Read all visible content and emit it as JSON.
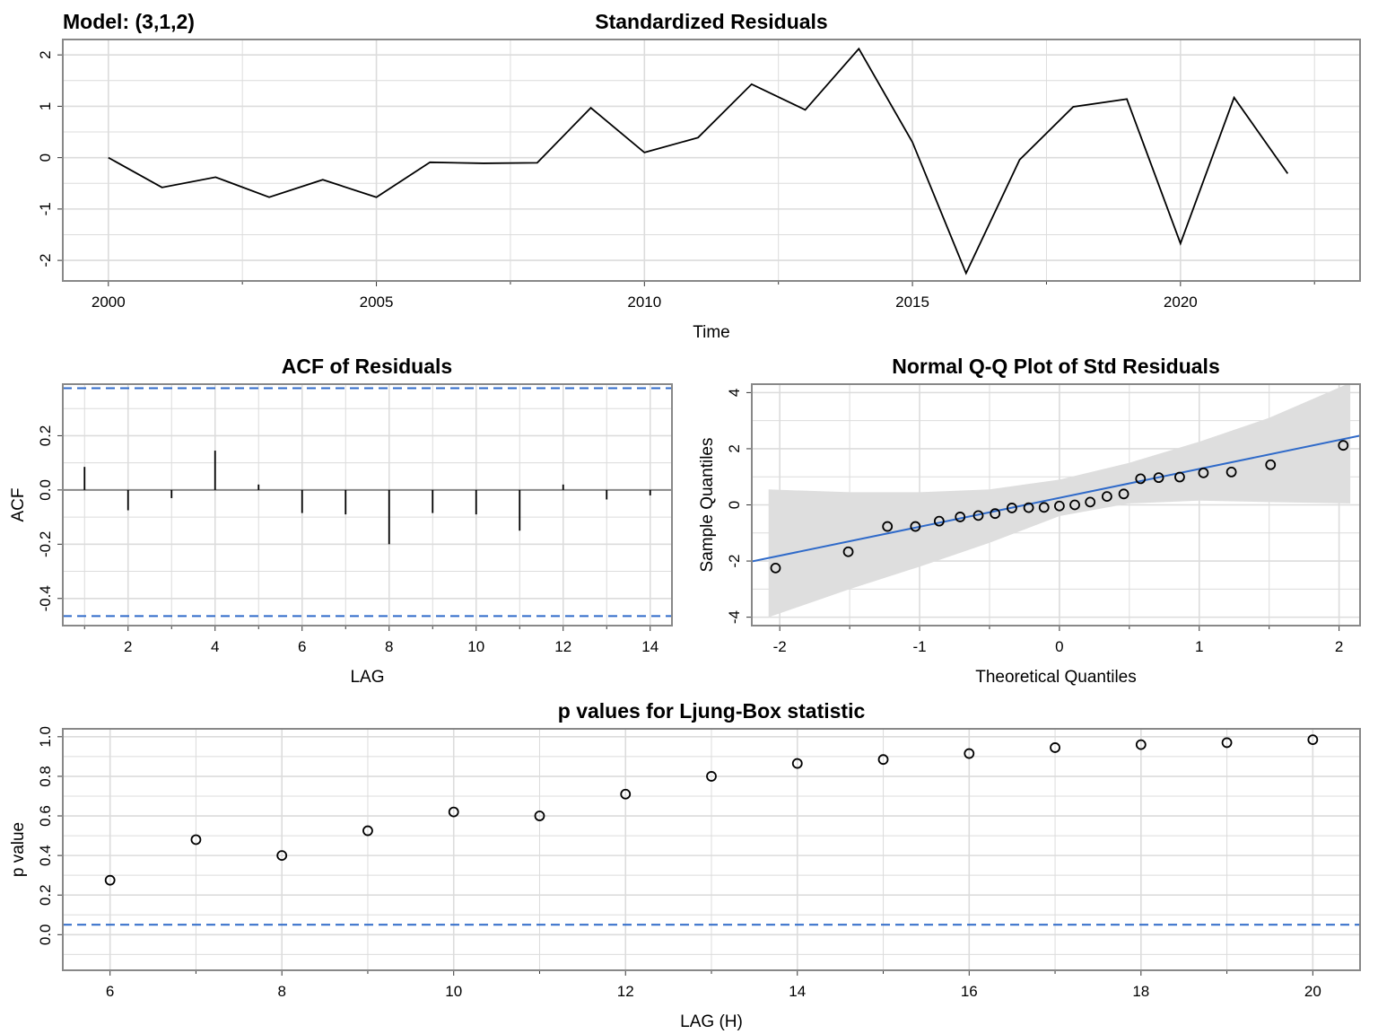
{
  "model_label": "Model: (3,1,2)",
  "chart_data": [
    {
      "id": "residuals",
      "type": "line",
      "title": "Standardized Residuals",
      "xlabel": "Time",
      "ylabel": "",
      "xlim": [
        1999.15,
        2023.35
      ],
      "ylim": [
        -2.4,
        2.3
      ],
      "xticks": [
        2000,
        2005,
        2010,
        2015,
        2020
      ],
      "yticks": [
        -2,
        -1,
        0,
        1,
        2
      ],
      "grid": true,
      "series": [
        {
          "x": [
            2000,
            2001,
            2002,
            2003,
            2004,
            2005,
            2006,
            2007,
            2008,
            2009,
            2010,
            2011,
            2012,
            2013,
            2014,
            2015,
            2016,
            2017,
            2018,
            2019,
            2020,
            2021,
            2022
          ],
          "y": [
            0.0,
            -0.58,
            -0.38,
            -0.77,
            -0.43,
            -0.77,
            -0.09,
            -0.11,
            -0.1,
            0.97,
            0.1,
            0.39,
            1.43,
            0.93,
            2.12,
            0.3,
            -2.25,
            -0.04,
            0.99,
            1.14,
            -1.67,
            1.17,
            -0.31
          ]
        }
      ]
    },
    {
      "id": "acf",
      "type": "bar",
      "title": "ACF of Residuals",
      "xlabel": "LAG",
      "ylabel": "ACF",
      "xlim": [
        0.5,
        14.5
      ],
      "ylim": [
        -0.5,
        0.39
      ],
      "xticks": [
        2,
        4,
        6,
        8,
        10,
        12,
        14
      ],
      "yticks": [
        -0.4,
        -0.2,
        0.0,
        0.2
      ],
      "ytick_labels": [
        "-0.4",
        "-0.2",
        "0.0",
        "0.2"
      ],
      "grid": true,
      "conf_band": [
        -0.465,
        0.375
      ],
      "series": [
        {
          "x": [
            1,
            2,
            3,
            4,
            5,
            6,
            7,
            8,
            9,
            10,
            11,
            12,
            13,
            14
          ],
          "y": [
            0.085,
            -0.075,
            -0.03,
            0.145,
            0.02,
            -0.085,
            -0.09,
            -0.2,
            -0.085,
            -0.09,
            -0.15,
            0.02,
            -0.035,
            -0.02
          ]
        }
      ]
    },
    {
      "id": "qq",
      "type": "scatter",
      "title": "Normal Q-Q Plot of Std Residuals",
      "xlabel": "Theoretical Quantiles",
      "ylabel": "Sample Quantiles",
      "xlim": [
        -2.2,
        2.15
      ],
      "ylim": [
        -4.3,
        4.3
      ],
      "xticks": [
        -2,
        -1,
        0,
        1,
        2
      ],
      "yticks": [
        -4,
        -2,
        0,
        2,
        4
      ],
      "grid": true,
      "ref_line": {
        "intercept": 0.25,
        "slope": 1.03
      },
      "band": {
        "x": [
          -2.08,
          -1.5,
          -1.0,
          -0.5,
          0.0,
          0.5,
          1.0,
          1.5,
          2.08
        ],
        "upper": [
          0.55,
          0.45,
          0.45,
          0.55,
          0.9,
          1.5,
          2.25,
          3.1,
          4.35
        ],
        "lower": [
          -4.0,
          -3.0,
          -2.2,
          -1.35,
          -0.4,
          0.05,
          0.15,
          0.1,
          0.05
        ]
      },
      "series": [
        {
          "x": [
            -2.03,
            -1.51,
            -1.23,
            -1.03,
            -0.86,
            -0.71,
            -0.58,
            -0.46,
            -0.34,
            -0.22,
            -0.11,
            0.0,
            0.11,
            0.22,
            0.34,
            0.46,
            0.58,
            0.71,
            0.86,
            1.03,
            1.23,
            1.51,
            2.03
          ],
          "y": [
            -2.25,
            -1.67,
            -0.77,
            -0.77,
            -0.58,
            -0.43,
            -0.38,
            -0.31,
            -0.11,
            -0.1,
            -0.09,
            -0.04,
            0.0,
            0.1,
            0.3,
            0.39,
            0.93,
            0.97,
            0.99,
            1.14,
            1.17,
            1.43,
            2.12
          ]
        }
      ]
    },
    {
      "id": "ljungbox",
      "type": "scatter",
      "title": "p values for Ljung-Box statistic",
      "xlabel": "LAG (H)",
      "ylabel": "p value",
      "xlim": [
        5.45,
        20.55
      ],
      "ylim": [
        -0.18,
        1.04
      ],
      "xticks": [
        6,
        8,
        10,
        12,
        14,
        16,
        18,
        20
      ],
      "yticks": [
        0.0,
        0.2,
        0.4,
        0.6,
        0.8,
        1.0
      ],
      "ytick_labels": [
        "0.0",
        "0.2",
        "0.4",
        "0.6",
        "0.8",
        "1.0"
      ],
      "grid": true,
      "threshold": 0.05,
      "series": [
        {
          "x": [
            6,
            7,
            8,
            9,
            10,
            11,
            12,
            13,
            14,
            15,
            16,
            17,
            18,
            19,
            20
          ],
          "y": [
            0.275,
            0.48,
            0.4,
            0.525,
            0.62,
            0.6,
            0.71,
            0.8,
            0.865,
            0.885,
            0.915,
            0.945,
            0.96,
            0.97,
            0.985
          ]
        }
      ]
    }
  ]
}
